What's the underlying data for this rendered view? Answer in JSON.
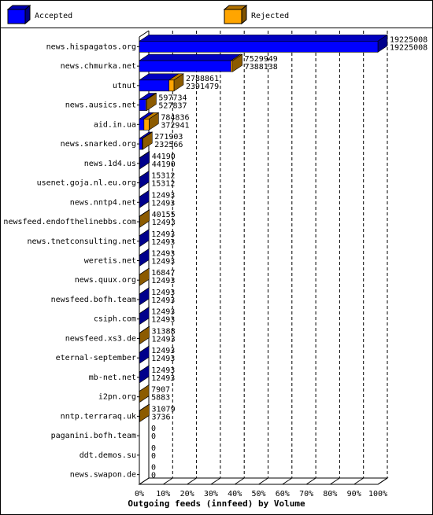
{
  "chart_data": {
    "type": "bar3d_stacked_horizontal",
    "x_label": "Outgoing feeds (innfeed) by Volume",
    "categories": [
      "news.hispagatos.org",
      "news.chmurka.net",
      "utnut",
      "news.ausics.net",
      "aid.in.ua",
      "news.snarked.org",
      "news.1d4.us",
      "usenet.goja.nl.eu.org",
      "news.nntp4.net",
      "newsfeed.endofthelinebbs.com",
      "news.tnetconsulting.net",
      "weretis.net",
      "news.quux.org",
      "newsfeed.bofh.team",
      "csiph.com",
      "newsfeed.xs3.de",
      "eternal-september",
      "mb-net.net",
      "i2pn.org",
      "nntp.terraraq.uk",
      "paganini.bofh.team",
      "ddt.demos.su",
      "news.swapon.de"
    ],
    "offered": [
      19225008,
      7529949,
      2788861,
      597734,
      784836,
      271903,
      44190,
      15312,
      12493,
      40155,
      12493,
      12493,
      16847,
      12493,
      12493,
      31388,
      12493,
      12493,
      7907,
      31079,
      0,
      0,
      0
    ],
    "series": [
      {
        "name": "Accepted",
        "color": "#0000ff",
        "values": [
          19225008,
          7388138,
          2391479,
          527837,
          372941,
          232566,
          44190,
          15312,
          12493,
          12493,
          12493,
          12493,
          12493,
          12493,
          12493,
          12493,
          12493,
          12493,
          5883,
          3736,
          0,
          0,
          0
        ]
      },
      {
        "name": "Rejected",
        "color": "#ffa500",
        "values": [
          0,
          141811,
          397382,
          69897,
          411895,
          39337,
          0,
          0,
          0,
          27662,
          0,
          0,
          4354,
          0,
          0,
          18895,
          0,
          0,
          2024,
          27343,
          0,
          0,
          0
        ]
      }
    ],
    "xlim": [
      0,
      19225008
    ],
    "xticks": [
      {
        "value": 0,
        "label": "0%"
      },
      {
        "value": 1922500.8,
        "label": "10%"
      },
      {
        "value": 3845001.6,
        "label": "20%"
      },
      {
        "value": 5767502.4,
        "label": "30%"
      },
      {
        "value": 7690003.2,
        "label": "40%"
      },
      {
        "value": 9612504,
        "label": "50%"
      },
      {
        "value": 11535004.8,
        "label": "60%"
      },
      {
        "value": 13457505.6,
        "label": "70%"
      },
      {
        "value": 15380006.4,
        "label": "80%"
      },
      {
        "value": 17302507.2,
        "label": "90%"
      },
      {
        "value": 19225008,
        "label": "100%"
      }
    ],
    "grid": true
  }
}
